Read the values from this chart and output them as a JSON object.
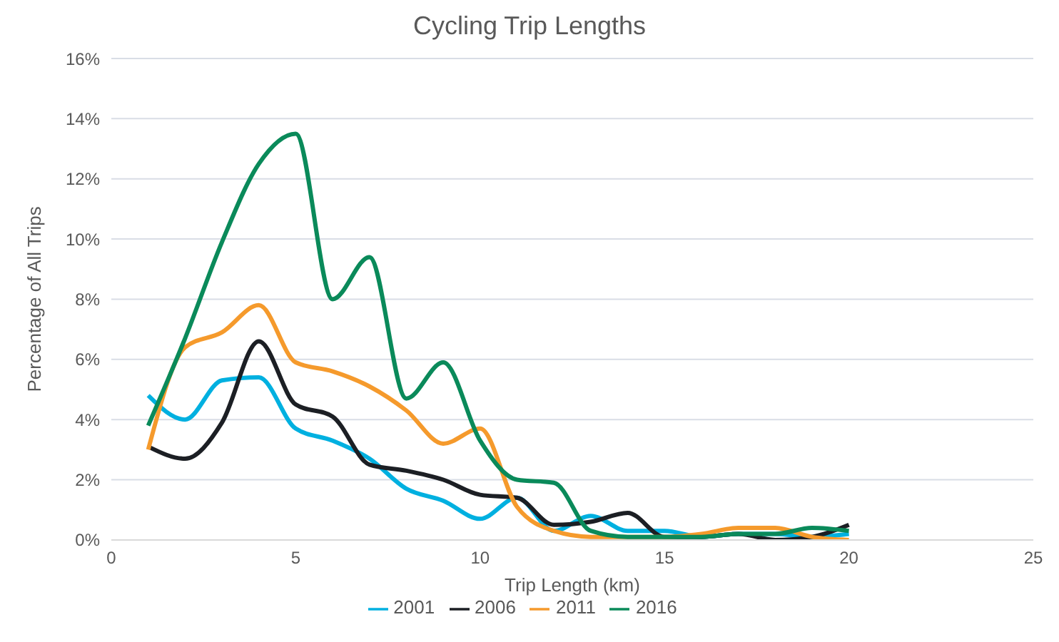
{
  "chart_data": {
    "type": "line",
    "title": "Cycling Trip Lengths",
    "xlabel": "Trip Length (km)",
    "ylabel": "Percentage of All Trips",
    "x": [
      1,
      2,
      3,
      4,
      5,
      6,
      7,
      8,
      9,
      10,
      11,
      12,
      13,
      14,
      15,
      16,
      17,
      18,
      19,
      20
    ],
    "series": [
      {
        "name": "2001",
        "color": "#00b0e0",
        "values": [
          4.8,
          4.0,
          5.3,
          5.4,
          3.7,
          3.3,
          2.7,
          1.7,
          1.3,
          0.7,
          1.4,
          0.3,
          0.8,
          0.3,
          0.3,
          0.1,
          0.2,
          0.2,
          0.1,
          0.2
        ]
      },
      {
        "name": "2006",
        "color": "#1c1f24",
        "values": [
          3.1,
          2.7,
          3.9,
          6.6,
          4.5,
          4.1,
          2.5,
          2.3,
          2.0,
          1.5,
          1.4,
          0.5,
          0.6,
          0.9,
          0.1,
          0.1,
          0.2,
          0.0,
          0.1,
          0.5
        ]
      },
      {
        "name": "2011",
        "color": "#f59a2c",
        "values": [
          3.0,
          6.4,
          6.9,
          7.8,
          5.9,
          5.6,
          5.1,
          4.3,
          3.2,
          3.7,
          1.1,
          0.3,
          0.1,
          0.1,
          0.1,
          0.2,
          0.4,
          0.4,
          0.1,
          0.0
        ]
      },
      {
        "name": "2016",
        "color": "#0a8a5a",
        "values": [
          3.8,
          6.7,
          9.9,
          12.5,
          13.5,
          8.0,
          9.4,
          4.7,
          5.9,
          3.3,
          2.0,
          1.9,
          0.3,
          0.1,
          0.1,
          0.1,
          0.2,
          0.2,
          0.4,
          0.3
        ]
      }
    ],
    "xlim": [
      0,
      25
    ],
    "xticks": [
      0,
      5,
      10,
      15,
      20,
      25
    ],
    "ylim": [
      0,
      16
    ],
    "yticks": [
      {
        "value": 0,
        "label": "0%"
      },
      {
        "value": 2,
        "label": "2%"
      },
      {
        "value": 4,
        "label": "4%"
      },
      {
        "value": 6,
        "label": "6%"
      },
      {
        "value": 8,
        "label": "8%"
      },
      {
        "value": 10,
        "label": "10%"
      },
      {
        "value": 12,
        "label": "12%"
      },
      {
        "value": 14,
        "label": "14%"
      },
      {
        "value": 16,
        "label": "16%"
      }
    ],
    "grid": "y",
    "legend": "bottom",
    "marker": "none",
    "line_style": "solid"
  }
}
